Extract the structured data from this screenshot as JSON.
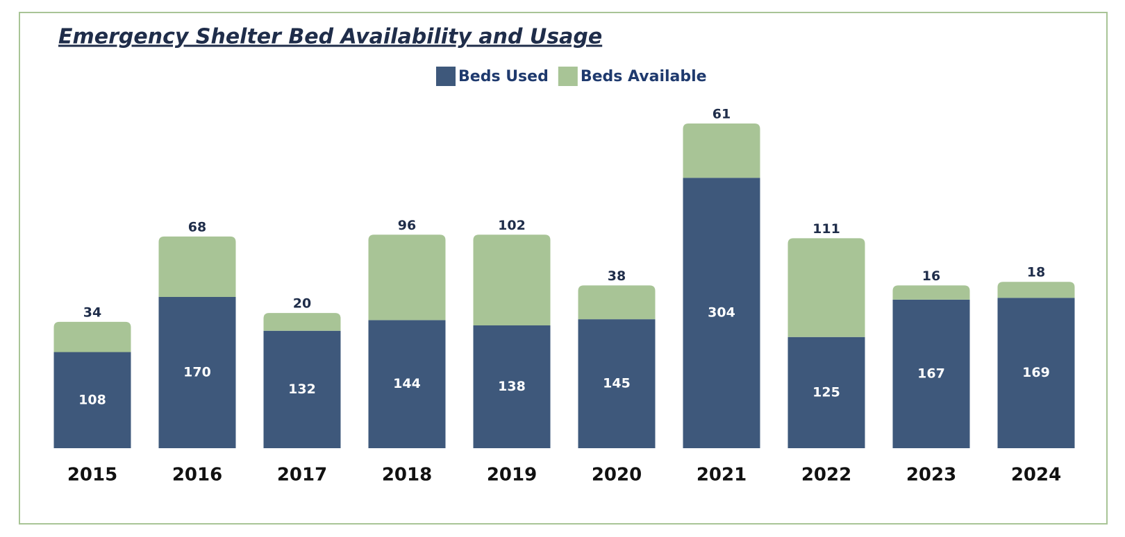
{
  "chart_data": {
    "type": "stacked_bar",
    "title": "Emergency Shelter Bed Availability and Usage",
    "categories": [
      "2015",
      "2016",
      "2017",
      "2018",
      "2019",
      "2020",
      "2021",
      "2022",
      "2023",
      "2024"
    ],
    "series": [
      {
        "name": "Beds Used",
        "color": "#3e587b",
        "values": [
          108,
          170,
          132,
          144,
          138,
          145,
          304,
          125,
          167,
          169
        ]
      },
      {
        "name": "Beds Available",
        "color": "#a8c496",
        "values": [
          34,
          68,
          20,
          96,
          102,
          38,
          61,
          111,
          16,
          18
        ]
      }
    ]
  }
}
